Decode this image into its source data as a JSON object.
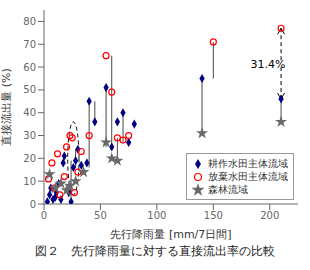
{
  "chart_data": {
    "type": "scatter",
    "title": "図２　先行降雨量に対する直接流出率の比較",
    "xlabel": "先行降雨量 [mm/7日間]",
    "ylabel": "直接流出量 (%)",
    "xlim": [
      0,
      225
    ],
    "ylim": [
      0,
      85
    ],
    "xticks": [
      0,
      50,
      100,
      150,
      200
    ],
    "yticks": [
      0,
      10,
      20,
      30,
      40,
      50,
      60,
      70,
      80
    ],
    "grid": false,
    "legend": "lower right",
    "series": [
      {
        "name": "耕作水田主体流域",
        "color": "navy",
        "marker": "diamond",
        "x": [
          3,
          5,
          6,
          8,
          10,
          11,
          13,
          15,
          17,
          18,
          22,
          24,
          26,
          28,
          30,
          33,
          38,
          40,
          45,
          55,
          60,
          65,
          70,
          75,
          80,
          140,
          210
        ],
        "values": [
          1,
          4,
          7,
          2,
          3,
          5,
          9,
          2,
          18,
          21,
          5,
          1,
          16,
          19,
          24,
          17,
          18,
          45,
          36,
          51,
          25,
          36,
          40,
          27,
          35,
          55,
          46
        ]
      },
      {
        "name": "放棄水田主体流域",
        "color": "red",
        "marker": "open_circle",
        "x": [
          4,
          7,
          9,
          12,
          14,
          18,
          20,
          23,
          25,
          27,
          30,
          33,
          40,
          55,
          60,
          65,
          70,
          75,
          150,
          210
        ],
        "values": [
          11,
          18,
          7,
          22,
          4,
          12,
          25,
          30,
          29,
          5,
          14,
          23,
          30,
          65,
          49,
          29,
          28,
          30,
          71,
          77
        ]
      },
      {
        "name": "森林流域",
        "color": "dimgray",
        "marker": "star",
        "x": [
          5,
          10,
          15,
          20,
          23,
          28,
          35,
          55,
          60,
          65,
          140,
          210
        ],
        "values": [
          13,
          7,
          9,
          6,
          8,
          10,
          14,
          27,
          20,
          19,
          31,
          36
        ]
      }
    ],
    "vertical_lines": [
      [
        40,
        16,
        45
      ],
      [
        45,
        36,
        45
      ],
      [
        55,
        25,
        51
      ],
      [
        60,
        25,
        65
      ],
      [
        65,
        19,
        29
      ],
      [
        70,
        27,
        40
      ],
      [
        140,
        31,
        55
      ],
      [
        150,
        55,
        71
      ],
      [
        210,
        36,
        46
      ],
      [
        24,
        1,
        19
      ],
      [
        28,
        16,
        24
      ]
    ],
    "ellipse": {
      "cx": 26,
      "cy": 20,
      "width": 10,
      "height": 32,
      "line_style": "dashed"
    },
    "arrows": [
      {
        "x": 210,
        "from": 63,
        "to": 77,
        "line_style": "dashed"
      },
      {
        "x": 210,
        "from": 60,
        "to": 46,
        "line_style": "dashed"
      }
    ],
    "annotations": [
      {
        "text": "31.4%",
        "x": 183,
        "y": 61
      }
    ]
  }
}
